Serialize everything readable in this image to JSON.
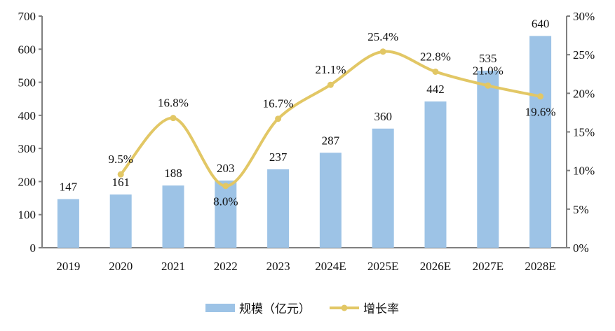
{
  "chart_data": {
    "type": "bar+line",
    "categories": [
      "2019",
      "2020",
      "2021",
      "2022",
      "2023",
      "2024E",
      "2025E",
      "2026E",
      "2027E",
      "2028E"
    ],
    "series": [
      {
        "name": "规模（亿元）",
        "type": "bar",
        "axis": "left",
        "color": "#9DC3E6",
        "values": [
          147,
          161,
          188,
          203,
          237,
          287,
          360,
          442,
          535,
          640
        ]
      },
      {
        "name": "增长率",
        "type": "line",
        "axis": "right",
        "color": "#E2C765",
        "smooth": true,
        "values": [
          null,
          9.5,
          16.8,
          8.0,
          16.7,
          21.1,
          25.4,
          22.8,
          21.0,
          19.6
        ]
      }
    ],
    "left_axis": {
      "min": 0,
      "max": 700,
      "step": 100,
      "ticks": [
        "0",
        "100",
        "200",
        "300",
        "400",
        "500",
        "600",
        "700"
      ]
    },
    "right_axis": {
      "min": 0,
      "max": 30,
      "step": 5,
      "ticks": [
        "0%",
        "5%",
        "10%",
        "15%",
        "20%",
        "25%",
        "30%"
      ]
    },
    "value_labels": [
      "147",
      "161",
      "188",
      "203",
      "237",
      "287",
      "360",
      "442",
      "535",
      "640"
    ],
    "rate_labels": [
      "",
      "9.5%",
      "16.8%",
      "8.0%",
      "16.7%",
      "21.1%",
      "25.4%",
      "22.8%",
      "21.0%",
      "19.6%"
    ],
    "legend": {
      "position": "bottom",
      "items": [
        "规模（亿元）",
        "增长率"
      ]
    },
    "grid": false
  }
}
